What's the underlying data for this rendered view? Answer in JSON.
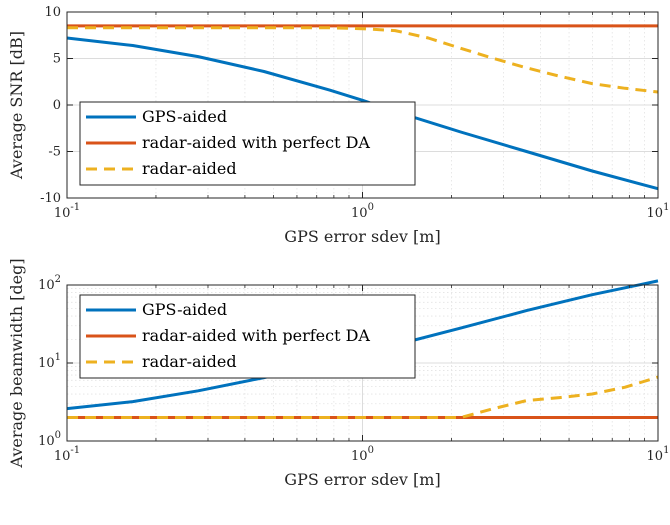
{
  "chart_data": [
    {
      "type": "line",
      "xscale": "log",
      "xlim": [
        0.1,
        10
      ],
      "ylim": [
        -10,
        10
      ],
      "yscale": "linear",
      "grid": true,
      "legend_position": "center-left",
      "xlabel": "GPS error sdev [m]",
      "ylabel": "Average SNR [dB]",
      "xticks": [
        {
          "value": 0.1,
          "base": "10",
          "exp": "-1"
        },
        {
          "value": 1,
          "base": "10",
          "exp": "0"
        },
        {
          "value": 10,
          "base": "10",
          "exp": "1"
        }
      ],
      "yticks": [
        {
          "value": -10,
          "label": "-10"
        },
        {
          "value": -5,
          "label": "-5"
        },
        {
          "value": 0,
          "label": "0"
        },
        {
          "value": 5,
          "label": "5"
        },
        {
          "value": 10,
          "label": "10"
        }
      ],
      "series": [
        {
          "name": "GPS-aided",
          "color": "#0072BD",
          "style": "solid",
          "x": [
            0.1,
            0.167,
            0.278,
            0.464,
            0.774,
            1.0,
            1.29,
            2.15,
            3.59,
            5.99,
            10
          ],
          "y": [
            7.2,
            6.4,
            5.2,
            3.6,
            1.6,
            0.5,
            -0.7,
            -2.9,
            -5.0,
            -7.1,
            -9.0
          ]
        },
        {
          "name": "radar-aided with perfect DA",
          "color": "#D95319",
          "style": "solid",
          "x": [
            0.1,
            10
          ],
          "y": [
            8.5,
            8.5
          ]
        },
        {
          "name": "radar-aided",
          "color": "#EDB120",
          "style": "dashed",
          "x": [
            0.1,
            0.774,
            1.0,
            1.29,
            1.67,
            2.15,
            2.78,
            3.59,
            4.64,
            5.99,
            7.74,
            10
          ],
          "y": [
            8.3,
            8.3,
            8.2,
            8.0,
            7.2,
            6.1,
            5.0,
            4.0,
            3.1,
            2.3,
            1.8,
            1.4
          ]
        }
      ]
    },
    {
      "type": "line",
      "xscale": "log",
      "yscale": "log",
      "xlim": [
        0.1,
        10
      ],
      "ylim": [
        1,
        100
      ],
      "grid": true,
      "legend_position": "top-left",
      "xlabel": "GPS error sdev [m]",
      "ylabel": "Average beamwidth [deg]",
      "xticks": [
        {
          "value": 0.1,
          "base": "10",
          "exp": "-1"
        },
        {
          "value": 1,
          "base": "10",
          "exp": "0"
        },
        {
          "value": 10,
          "base": "10",
          "exp": "1"
        }
      ],
      "yticks": [
        {
          "value": 1,
          "base": "10",
          "exp": "0"
        },
        {
          "value": 10,
          "base": "10",
          "exp": "1"
        },
        {
          "value": 100,
          "base": "10",
          "exp": "2"
        }
      ],
      "series": [
        {
          "name": "GPS-aided",
          "color": "#0072BD",
          "style": "solid",
          "x": [
            0.1,
            0.167,
            0.278,
            0.464,
            0.774,
            1.29,
            2.15,
            3.59,
            5.99,
            10
          ],
          "y": [
            2.6,
            3.2,
            4.4,
            6.5,
            10.0,
            17.0,
            28.0,
            47.0,
            75.0,
            113.0
          ]
        },
        {
          "name": "radar-aided with perfect DA",
          "color": "#D95319",
          "style": "solid",
          "x": [
            0.1,
            10
          ],
          "y": [
            2.0,
            2.0
          ]
        },
        {
          "name": "radar-aided",
          "color": "#EDB120",
          "style": "dashed",
          "x": [
            0.1,
            2.15,
            2.78,
            3.59,
            4.64,
            5.99,
            7.74,
            10
          ],
          "y": [
            2.0,
            2.0,
            2.6,
            3.3,
            3.6,
            4.0,
            4.9,
            6.6
          ]
        }
      ]
    }
  ]
}
